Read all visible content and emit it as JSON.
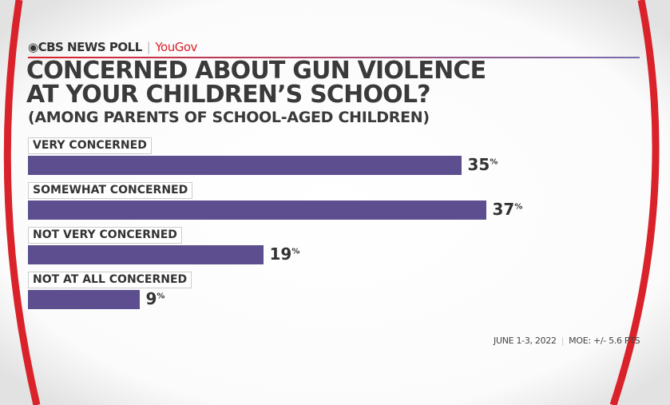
{
  "header": {
    "brand": "CBS NEWS POLL",
    "partner": "YouGov"
  },
  "colors": {
    "bar": "#5c4e8f",
    "accent": "#d9222a"
  },
  "chart_data": {
    "type": "bar",
    "orientation": "horizontal",
    "title": "CONCERNED ABOUT GUN VIOLENCE AT YOUR CHILDREN'S SCHOOL?",
    "title_line1": "CONCERNED ABOUT GUN VIOLENCE",
    "title_line2": "AT YOUR CHILDREN’S SCHOOL?",
    "subtitle": "(AMONG PARENTS OF SCHOOL-AGED CHILDREN)",
    "categories": [
      "VERY CONCERNED",
      "SOMEWHAT CONCERNED",
      "NOT VERY CONCERNED",
      "NOT AT ALL CONCERNED"
    ],
    "values": [
      35,
      37,
      19,
      9
    ],
    "unit": "%"
  },
  "footer": {
    "dates": "JUNE 1-3, 2022",
    "moe": "MOE: +/- 5.6 PTS"
  }
}
